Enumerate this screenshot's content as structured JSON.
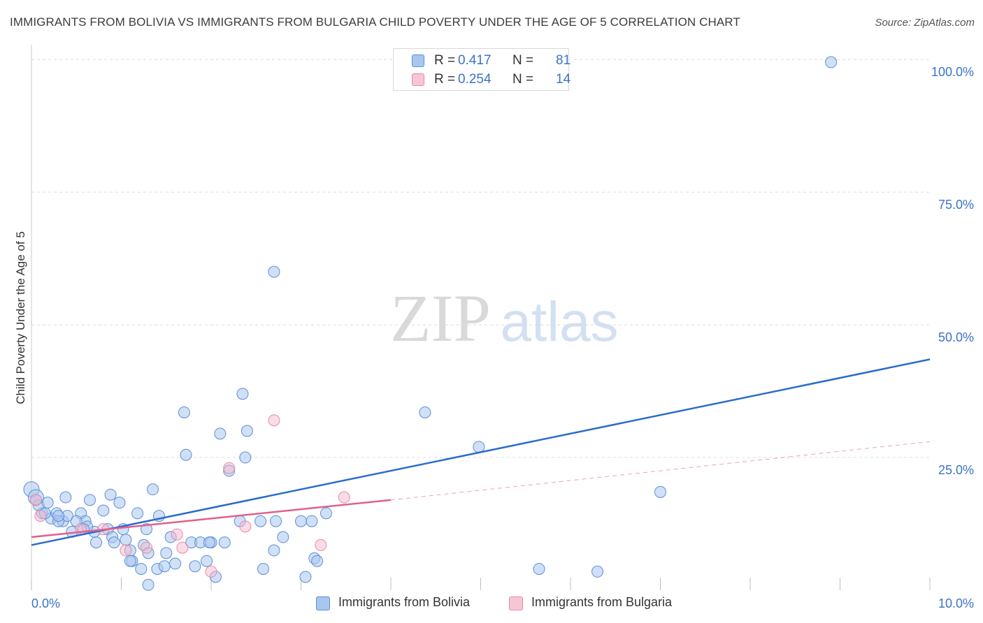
{
  "header": {
    "title": "IMMIGRANTS FROM BOLIVIA VS IMMIGRANTS FROM BULGARIA CHILD POVERTY UNDER THE AGE OF 5 CORRELATION CHART",
    "source": "Source: ZipAtlas.com"
  },
  "watermark": {
    "zip": "ZIP",
    "atlas": "atlas"
  },
  "legend_stats": [
    {
      "r_label": "R =",
      "r_value": "0.417",
      "n_label": "N =",
      "n_value": "81"
    },
    {
      "r_label": "R =",
      "r_value": "0.254",
      "n_label": "N =",
      "n_value": "14"
    }
  ],
  "chart_data": {
    "type": "scatter",
    "title": "IMMIGRANTS FROM BOLIVIA VS IMMIGRANTS FROM BULGARIA CHILD POVERTY UNDER THE AGE OF 5 CORRELATION CHART",
    "xlabel": "",
    "ylabel": "Child Poverty Under the Age of 5",
    "xlim": [
      0,
      10
    ],
    "ylim": [
      0,
      102
    ],
    "x_tick_labels": [
      "0.0%",
      "10.0%"
    ],
    "y_ticks": [
      25,
      50,
      75,
      100
    ],
    "y_tick_labels": [
      "25.0%",
      "50.0%",
      "75.0%",
      "100.0%"
    ],
    "grid": true,
    "legend_position": "bottom-center",
    "colors": {
      "bolivia_fill": "#a9c6ef",
      "bolivia_stroke": "#5b8fd6",
      "bolivia_line": "#2a6ccc",
      "bulgaria_fill": "#f7b8cb",
      "bulgaria_stroke": "#e58aa6",
      "bulgaria_line": "#e0608c",
      "tick_label": "#3b73c6"
    },
    "series": [
      {
        "name": "Immigrants from Bolivia",
        "r": 0.417,
        "n": 81,
        "trend": {
          "x": [
            0,
            10
          ],
          "y": [
            8.5,
            43.5
          ]
        },
        "points": [
          [
            0.05,
            17.0
          ],
          [
            0.12,
            14.5
          ],
          [
            0.08,
            16.0
          ],
          [
            0.18,
            16.5
          ],
          [
            0.22,
            13.5
          ],
          [
            0.28,
            14.5
          ],
          [
            0.35,
            13.0
          ],
          [
            0.4,
            14.0
          ],
          [
            0.45,
            11.0
          ],
          [
            0.3,
            13.0
          ],
          [
            0.55,
            14.5
          ],
          [
            0.6,
            13.0
          ],
          [
            0.65,
            17.0
          ],
          [
            0.7,
            11.0
          ],
          [
            0.72,
            9.0
          ],
          [
            0.8,
            15.0
          ],
          [
            0.85,
            11.5
          ],
          [
            0.9,
            10.0
          ],
          [
            0.92,
            9.0
          ],
          [
            0.98,
            16.5
          ],
          [
            1.02,
            11.5
          ],
          [
            1.05,
            9.5
          ],
          [
            1.1,
            7.5
          ],
          [
            1.12,
            5.5
          ],
          [
            1.18,
            14.5
          ],
          [
            1.22,
            4.0
          ],
          [
            1.25,
            8.5
          ],
          [
            1.28,
            11.5
          ],
          [
            1.35,
            19.0
          ],
          [
            1.4,
            4.0
          ],
          [
            1.42,
            14.0
          ],
          [
            1.5,
            7.0
          ],
          [
            1.55,
            10.0
          ],
          [
            1.6,
            5.0
          ],
          [
            1.7,
            33.5
          ],
          [
            1.72,
            25.5
          ],
          [
            1.78,
            9.0
          ],
          [
            1.82,
            4.5
          ],
          [
            1.88,
            9.0
          ],
          [
            1.95,
            5.5
          ],
          [
            2.0,
            9.0
          ],
          [
            2.05,
            2.5
          ],
          [
            2.1,
            29.5
          ],
          [
            2.15,
            9.0
          ],
          [
            2.2,
            22.5
          ],
          [
            2.32,
            13.0
          ],
          [
            2.35,
            37.0
          ],
          [
            2.38,
            25.0
          ],
          [
            2.4,
            30.0
          ],
          [
            2.55,
            13.0
          ],
          [
            2.58,
            4.0
          ],
          [
            2.7,
            60.0
          ],
          [
            2.72,
            13.0
          ],
          [
            2.8,
            10.0
          ],
          [
            3.0,
            13.0
          ],
          [
            3.05,
            2.5
          ],
          [
            3.12,
            13.0
          ],
          [
            3.15,
            6.0
          ],
          [
            3.18,
            5.5
          ],
          [
            3.28,
            14.5
          ],
          [
            0.3,
            14.0
          ],
          [
            0.38,
            17.5
          ],
          [
            0.62,
            12.0
          ],
          [
            0.88,
            18.0
          ],
          [
            1.3,
            7.0
          ],
          [
            1.48,
            4.5
          ],
          [
            1.98,
            9.0
          ],
          [
            2.7,
            7.5
          ],
          [
            0.5,
            13.0
          ],
          [
            0.58,
            11.5
          ],
          [
            4.38,
            33.5
          ],
          [
            4.98,
            27.0
          ],
          [
            7.0,
            18.5
          ],
          [
            8.9,
            99.5
          ],
          [
            5.65,
            4.0
          ],
          [
            6.3,
            3.5
          ],
          [
            1.1,
            5.5
          ],
          [
            1.3,
            1.0
          ],
          [
            0.15,
            14.5
          ],
          [
            0.0,
            19.0
          ],
          [
            0.05,
            17.5
          ]
        ]
      },
      {
        "name": "Immigrants from Bulgaria",
        "r": 0.254,
        "n": 14,
        "trend": {
          "x": [
            0,
            4.0
          ],
          "y": [
            10.0,
            17.0
          ]
        },
        "trend_extension": {
          "x": [
            4.0,
            10
          ],
          "y": [
            17.0,
            28.0
          ]
        },
        "points": [
          [
            0.05,
            17.0
          ],
          [
            0.1,
            14.0
          ],
          [
            0.55,
            11.5
          ],
          [
            0.8,
            11.5
          ],
          [
            1.05,
            7.5
          ],
          [
            1.28,
            8.0
          ],
          [
            1.62,
            10.5
          ],
          [
            1.68,
            8.0
          ],
          [
            2.0,
            3.5
          ],
          [
            2.2,
            23.0
          ],
          [
            2.38,
            12.0
          ],
          [
            2.7,
            32.0
          ],
          [
            3.22,
            8.5
          ],
          [
            3.48,
            17.5
          ]
        ]
      }
    ]
  },
  "legend": {
    "items": [
      {
        "label": "Immigrants from Bolivia"
      },
      {
        "label": "Immigrants from Bulgaria"
      }
    ]
  }
}
